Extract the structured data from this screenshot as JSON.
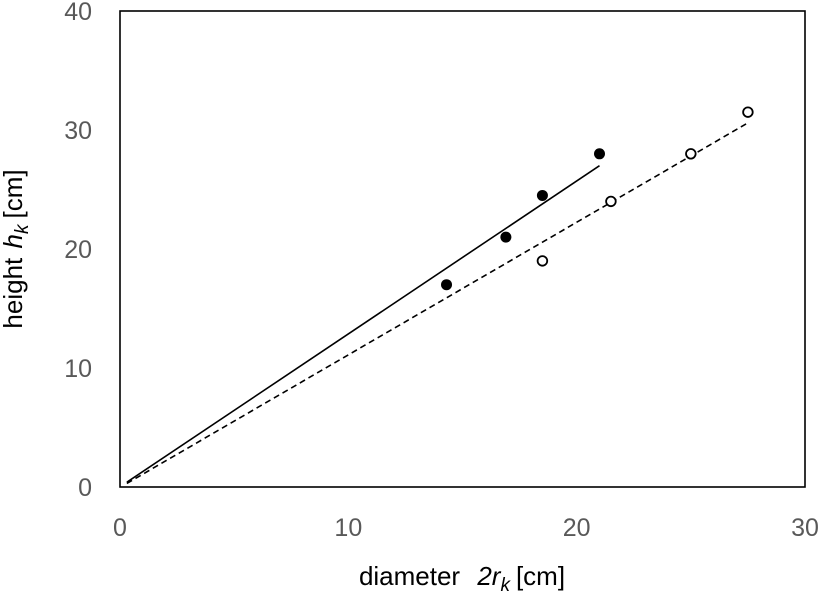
{
  "chart_data": {
    "type": "scatter",
    "xlabel": {
      "prefix": "diameter",
      "math": "2r",
      "sub": "k",
      "unit": "[cm]"
    },
    "ylabel": {
      "prefix": "height",
      "math": "h",
      "sub": "k",
      "unit": "[cm]"
    },
    "xlim": [
      0,
      30
    ],
    "ylim": [
      0,
      40
    ],
    "x_ticks": [
      "0",
      "10",
      "20",
      "30"
    ],
    "y_ticks": [
      "0",
      "10",
      "20",
      "30",
      "40"
    ],
    "grid": false,
    "legend": "none",
    "series": [
      {
        "marker": "filled-circle",
        "color": "#000000",
        "points": [
          [
            14.3,
            17.0
          ],
          [
            16.9,
            21.0
          ],
          [
            18.5,
            24.5
          ],
          [
            21.0,
            28.0
          ]
        ],
        "fit_line": {
          "style": "solid",
          "x": [
            0.3,
            21.0
          ],
          "y": [
            0.4,
            27.0
          ]
        }
      },
      {
        "marker": "open-circle",
        "color": "#000000",
        "points": [
          [
            18.5,
            19.0
          ],
          [
            21.5,
            24.0
          ],
          [
            25.0,
            28.0
          ],
          [
            27.5,
            31.5
          ]
        ],
        "fit_line": {
          "style": "dashed",
          "x": [
            0.3,
            27.5
          ],
          "y": [
            0.3,
            30.6
          ]
        }
      }
    ]
  }
}
